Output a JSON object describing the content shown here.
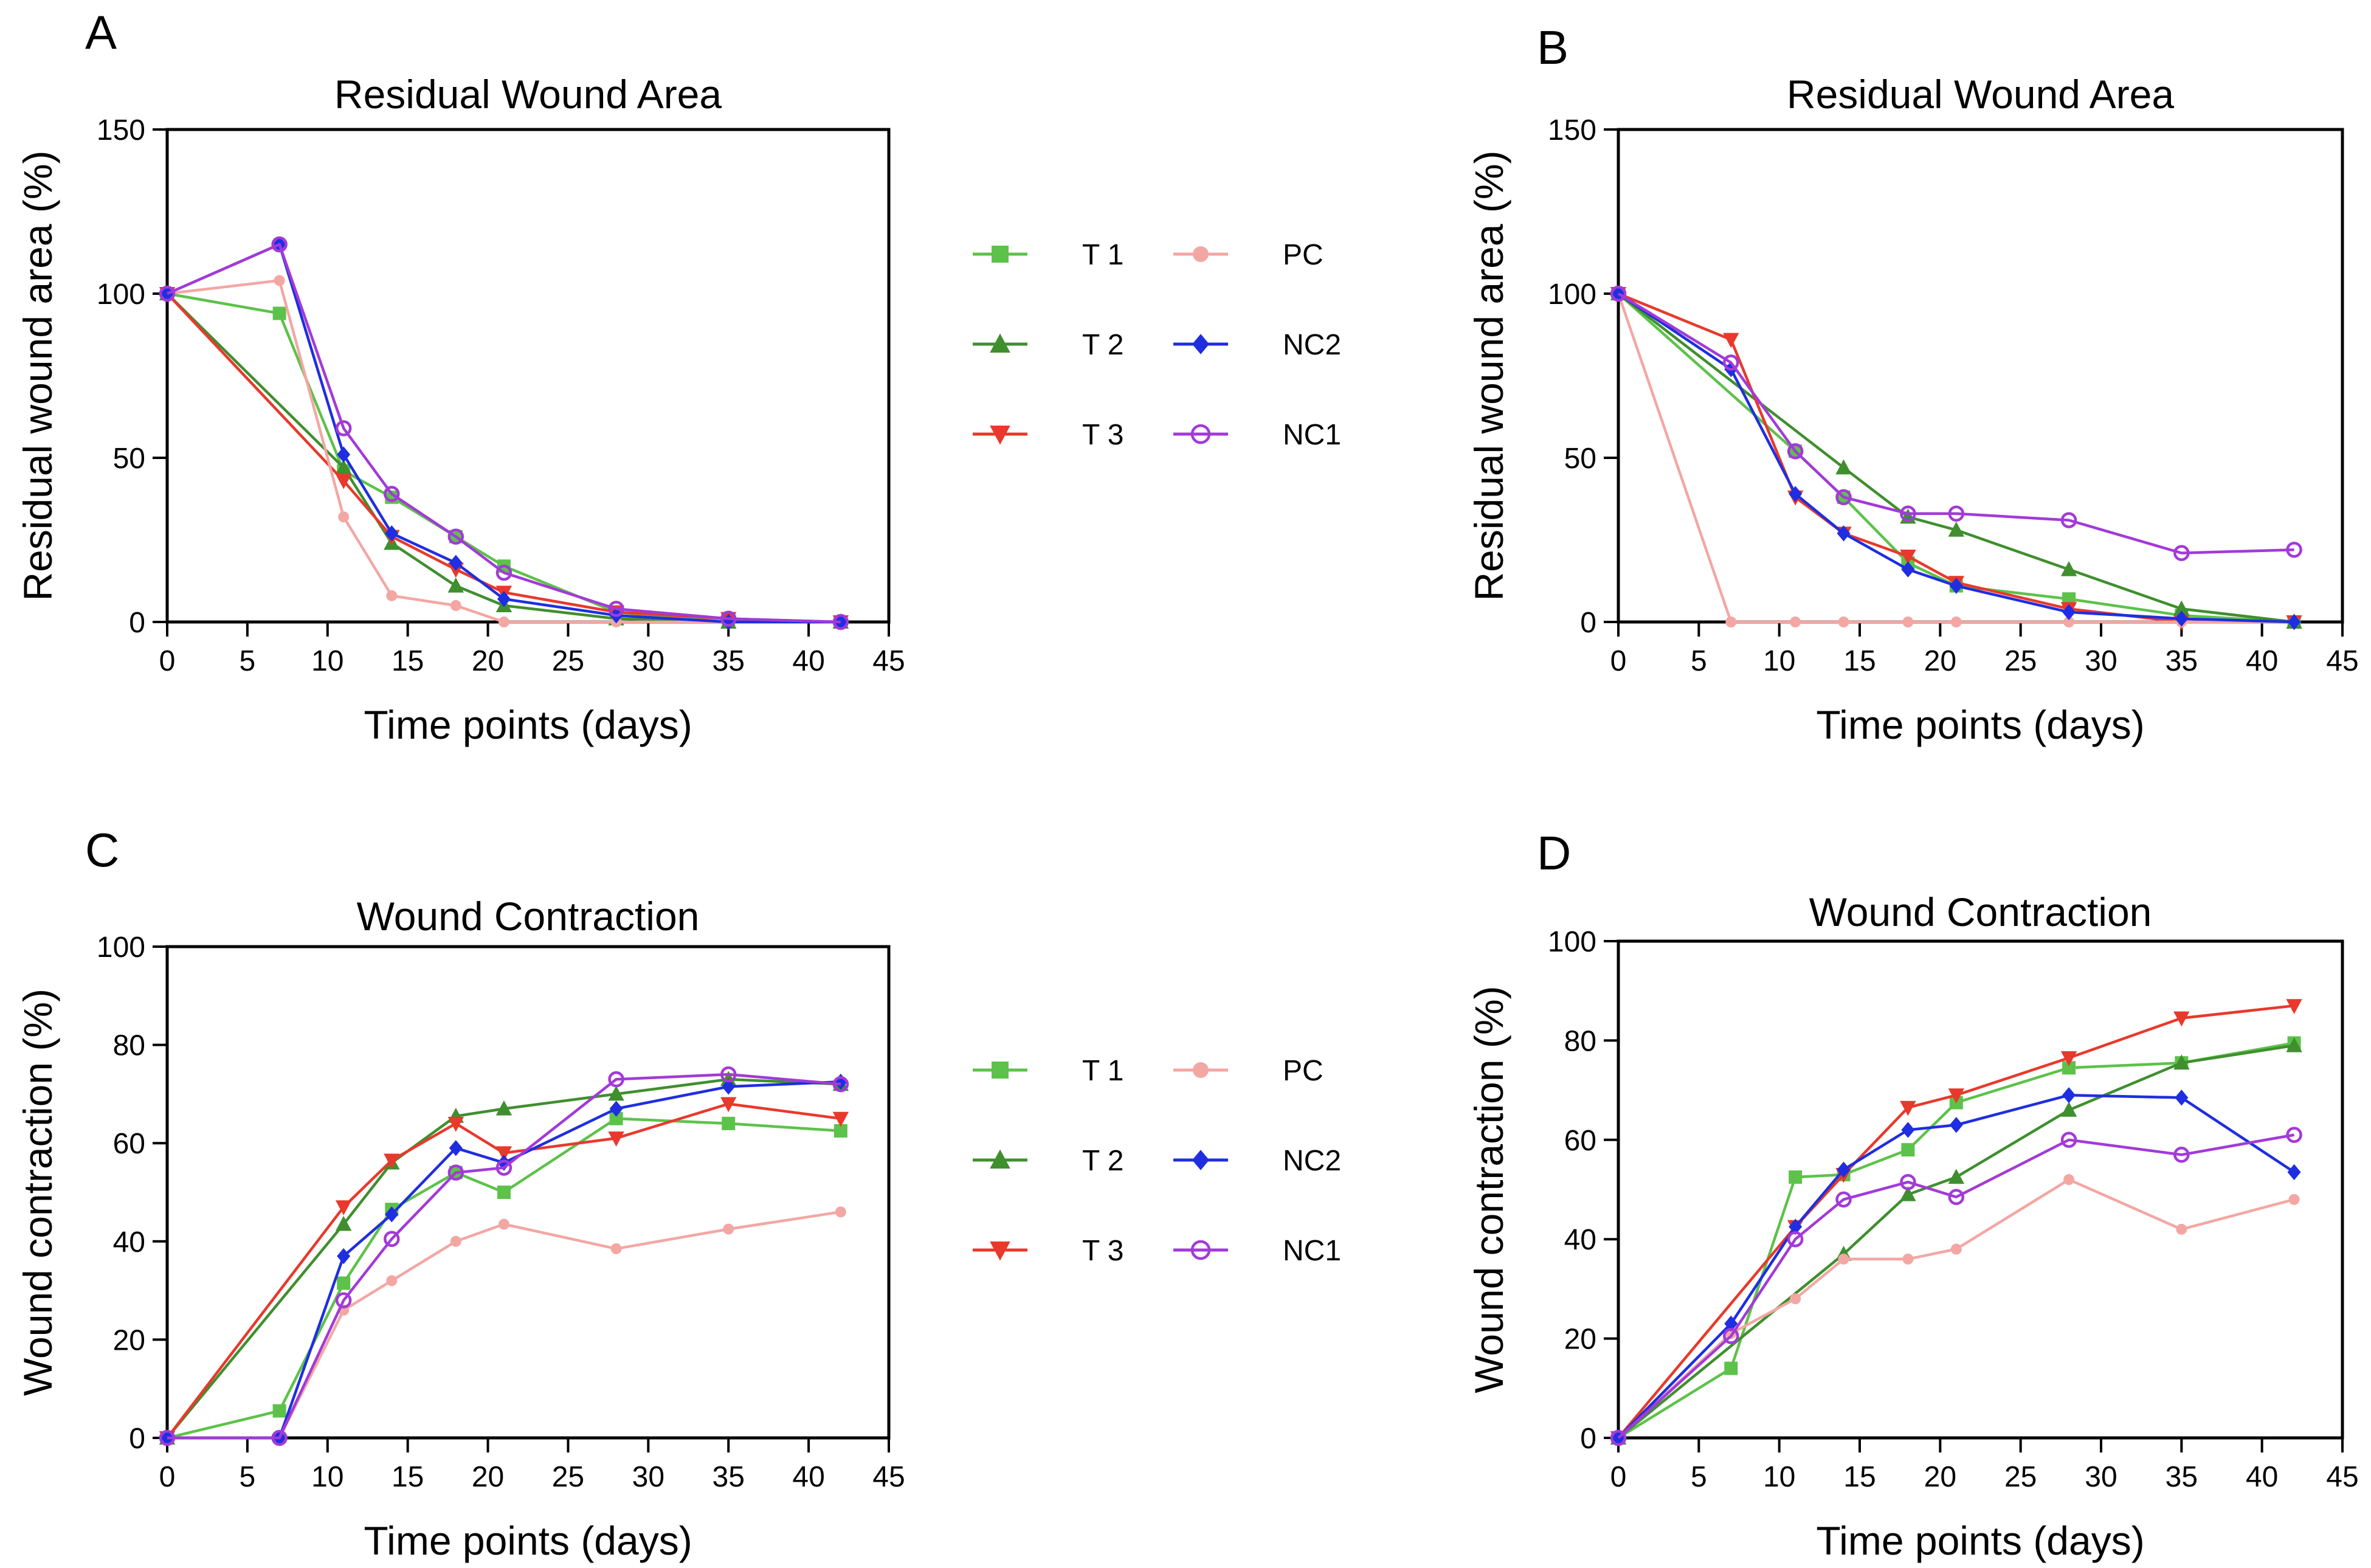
{
  "chart_data": [
    {
      "panel": "A",
      "type": "line",
      "title": "Residual Wound Area",
      "xlabel": "Time points (days)",
      "ylabel": "Residual wound area (%)",
      "xlim": [
        0,
        45
      ],
      "ylim": [
        0,
        150
      ],
      "xticks": [
        0,
        5,
        10,
        15,
        20,
        25,
        30,
        35,
        40,
        45
      ],
      "yticks": [
        0,
        50,
        100,
        150
      ],
      "grid": false,
      "legend": "right",
      "series": [
        {
          "name": "T 1",
          "color": "#5dc24a",
          "marker": "square",
          "x": [
            0,
            7,
            11,
            14,
            18,
            21,
            28,
            35,
            42
          ],
          "y": [
            100,
            94,
            46,
            38,
            26,
            17,
            3,
            0,
            0
          ]
        },
        {
          "name": "T 2",
          "color": "#3f8f2e",
          "marker": "triangle-up",
          "x": [
            0,
            11,
            14,
            18,
            21,
            28,
            35,
            42
          ],
          "y": [
            100,
            47,
            24,
            11,
            5,
            1,
            0,
            0
          ]
        },
        {
          "name": "T 3",
          "color": "#e8392c",
          "marker": "triangle-down",
          "x": [
            0,
            11,
            14,
            18,
            21,
            28,
            35,
            42
          ],
          "y": [
            100,
            43,
            26,
            16,
            9,
            3,
            1,
            0
          ]
        },
        {
          "name": "PC",
          "color": "#f3a7a3",
          "marker": "circle",
          "x": [
            0,
            7,
            11,
            14,
            18,
            21,
            28,
            35,
            42
          ],
          "y": [
            100,
            104,
            32,
            8,
            5,
            0,
            0,
            0,
            0
          ]
        },
        {
          "name": "NC2",
          "color": "#1f2ee0",
          "marker": "diamond",
          "x": [
            0,
            7,
            11,
            14,
            18,
            21,
            28,
            35,
            42
          ],
          "y": [
            100,
            115,
            51,
            27,
            18,
            7,
            2,
            0,
            0
          ]
        },
        {
          "name": "NC1",
          "color": "#a23ad8",
          "marker": "circle-open",
          "x": [
            0,
            7,
            11,
            14,
            18,
            21,
            28,
            35,
            42
          ],
          "y": [
            100,
            115,
            59,
            39,
            26,
            15,
            4,
            1,
            0
          ]
        }
      ]
    },
    {
      "panel": "B",
      "type": "line",
      "title": "Residual Wound Area",
      "xlabel": "Time points (days)",
      "ylabel": "Residual wound area (%)",
      "xlim": [
        0,
        45
      ],
      "ylim": [
        0,
        150
      ],
      "xticks": [
        0,
        5,
        10,
        15,
        20,
        25,
        30,
        35,
        40,
        45
      ],
      "yticks": [
        0,
        50,
        100,
        150
      ],
      "grid": false,
      "legend": "shared",
      "series": [
        {
          "name": "T 1",
          "color": "#5dc24a",
          "marker": "square",
          "x": [
            0,
            11,
            14,
            18,
            21,
            28,
            35,
            42
          ],
          "y": [
            100,
            52,
            38,
            18,
            11,
            7,
            2,
            0
          ]
        },
        {
          "name": "T 2",
          "color": "#3f8f2e",
          "marker": "triangle-up",
          "x": [
            0,
            14,
            18,
            21,
            28,
            35,
            42
          ],
          "y": [
            100,
            47,
            32,
            28,
            16,
            4,
            0
          ]
        },
        {
          "name": "T 3",
          "color": "#e8392c",
          "marker": "triangle-down",
          "x": [
            0,
            7,
            11,
            14,
            18,
            21,
            28,
            35,
            42
          ],
          "y": [
            100,
            86,
            38,
            27,
            20,
            12,
            4,
            0,
            0
          ]
        },
        {
          "name": "PC",
          "color": "#f3a7a3",
          "marker": "circle",
          "x": [
            0,
            7,
            11,
            14,
            18,
            21,
            28,
            35,
            42
          ],
          "y": [
            100,
            0,
            0,
            0,
            0,
            0,
            0,
            0,
            0
          ]
        },
        {
          "name": "NC2",
          "color": "#1f2ee0",
          "marker": "diamond",
          "x": [
            0,
            7,
            11,
            14,
            18,
            21,
            28,
            35,
            42
          ],
          "y": [
            100,
            77,
            39,
            27,
            16,
            11,
            3,
            1,
            0
          ]
        },
        {
          "name": "NC1",
          "color": "#a23ad8",
          "marker": "circle-open",
          "x": [
            0,
            7,
            11,
            14,
            18,
            21,
            28,
            35,
            42
          ],
          "y": [
            100,
            79,
            52,
            38,
            33,
            33,
            31,
            21,
            22
          ]
        }
      ]
    },
    {
      "panel": "C",
      "type": "line",
      "title": "Wound Contraction",
      "xlabel": "Time points (days)",
      "ylabel": "Wound contraction (%)",
      "xlim": [
        0,
        45
      ],
      "ylim": [
        0,
        100
      ],
      "xticks": [
        0,
        5,
        10,
        15,
        20,
        25,
        30,
        35,
        40,
        45
      ],
      "yticks": [
        0,
        20,
        40,
        60,
        80,
        100
      ],
      "grid": false,
      "legend": "right",
      "series": [
        {
          "name": "T 1",
          "color": "#5dc24a",
          "marker": "square",
          "x": [
            0,
            7,
            11,
            14,
            18,
            21,
            28,
            35,
            42
          ],
          "y": [
            0,
            5.5,
            31.5,
            46.5,
            54,
            50,
            65,
            64,
            62.5
          ]
        },
        {
          "name": "T 2",
          "color": "#3f8f2e",
          "marker": "triangle-up",
          "x": [
            0,
            11,
            14,
            18,
            21,
            28,
            35,
            42
          ],
          "y": [
            0,
            43.5,
            56,
            65.5,
            67,
            70,
            73,
            72
          ]
        },
        {
          "name": "T 3",
          "color": "#e8392c",
          "marker": "triangle-down",
          "x": [
            0,
            11,
            14,
            18,
            21,
            28,
            35,
            42
          ],
          "y": [
            0,
            47,
            56.5,
            64,
            58,
            61,
            68,
            65
          ]
        },
        {
          "name": "PC",
          "color": "#f3a7a3",
          "marker": "circle",
          "x": [
            0,
            7,
            11,
            14,
            18,
            21,
            28,
            35,
            42
          ],
          "y": [
            0,
            0,
            26,
            32,
            40,
            43.5,
            38.5,
            42.5,
            46
          ]
        },
        {
          "name": "NC2",
          "color": "#1f2ee0",
          "marker": "diamond",
          "x": [
            0,
            7,
            11,
            14,
            18,
            21,
            28,
            35,
            42
          ],
          "y": [
            0,
            0,
            37,
            45.5,
            59,
            56,
            67,
            71.5,
            72.5
          ]
        },
        {
          "name": "NC1",
          "color": "#a23ad8",
          "marker": "circle-open",
          "x": [
            0,
            7,
            11,
            14,
            18,
            21,
            28,
            35,
            42
          ],
          "y": [
            0,
            0,
            28,
            40.5,
            54,
            55,
            73,
            74,
            72
          ]
        }
      ]
    },
    {
      "panel": "D",
      "type": "line",
      "title": "Wound Contraction",
      "xlabel": "Time points (days)",
      "ylabel": "Wound contraction (%)",
      "xlim": [
        0,
        45
      ],
      "ylim": [
        0,
        100
      ],
      "xticks": [
        0,
        5,
        10,
        15,
        20,
        25,
        30,
        35,
        40,
        45
      ],
      "yticks": [
        0,
        20,
        40,
        60,
        80,
        100
      ],
      "grid": false,
      "legend": "shared",
      "series": [
        {
          "name": "T 1",
          "color": "#5dc24a",
          "marker": "square",
          "x": [
            0,
            7,
            11,
            14,
            18,
            21,
            28,
            35,
            42
          ],
          "y": [
            0,
            14,
            52.5,
            53,
            58,
            67.5,
            74.5,
            75.5,
            79.5
          ]
        },
        {
          "name": "T 2",
          "color": "#3f8f2e",
          "marker": "triangle-up",
          "x": [
            0,
            14,
            18,
            21,
            28,
            35,
            42
          ],
          "y": [
            0,
            37,
            49,
            52.5,
            66,
            75.5,
            79
          ]
        },
        {
          "name": "T 3",
          "color": "#e8392c",
          "marker": "triangle-down",
          "x": [
            0,
            11,
            14,
            18,
            21,
            28,
            35,
            42
          ],
          "y": [
            0,
            42.5,
            53,
            66.5,
            69,
            76.5,
            84.5,
            87
          ]
        },
        {
          "name": "PC",
          "color": "#f3a7a3",
          "marker": "circle",
          "x": [
            0,
            7,
            11,
            14,
            18,
            21,
            28,
            35,
            42
          ],
          "y": [
            0,
            21,
            28,
            36,
            36,
            38,
            52,
            42,
            48
          ]
        },
        {
          "name": "NC2",
          "color": "#1f2ee0",
          "marker": "diamond",
          "x": [
            0,
            7,
            11,
            14,
            18,
            21,
            28,
            35,
            42
          ],
          "y": [
            0,
            23,
            42.5,
            54,
            62,
            63,
            69,
            68.5,
            53.5
          ]
        },
        {
          "name": "NC1",
          "color": "#a23ad8",
          "marker": "circle-open",
          "x": [
            0,
            7,
            11,
            14,
            18,
            21,
            28,
            35,
            42
          ],
          "y": [
            0,
            20.5,
            40,
            48,
            51.5,
            48.5,
            60,
            57,
            61
          ]
        }
      ]
    }
  ],
  "legends": [
    {
      "items": [
        {
          "label": "T 1",
          "color": "#5dc24a",
          "marker": "square"
        },
        {
          "label": "PC",
          "color": "#f3a7a3",
          "marker": "circle"
        },
        {
          "label": "T 2",
          "color": "#3f8f2e",
          "marker": "triangle-up"
        },
        {
          "label": "NC2",
          "color": "#1f2ee0",
          "marker": "diamond"
        },
        {
          "label": "T 3",
          "color": "#e8392c",
          "marker": "triangle-down"
        },
        {
          "label": "NC1",
          "color": "#a23ad8",
          "marker": "circle-open"
        }
      ]
    },
    {
      "items": [
        {
          "label": "T 1",
          "color": "#5dc24a",
          "marker": "square"
        },
        {
          "label": "PC",
          "color": "#f3a7a3",
          "marker": "circle"
        },
        {
          "label": "T 2",
          "color": "#3f8f2e",
          "marker": "triangle-up"
        },
        {
          "label": "NC2",
          "color": "#1f2ee0",
          "marker": "diamond"
        },
        {
          "label": "T 3",
          "color": "#e8392c",
          "marker": "triangle-down"
        },
        {
          "label": "NC1",
          "color": "#a23ad8",
          "marker": "circle-open"
        }
      ]
    }
  ]
}
